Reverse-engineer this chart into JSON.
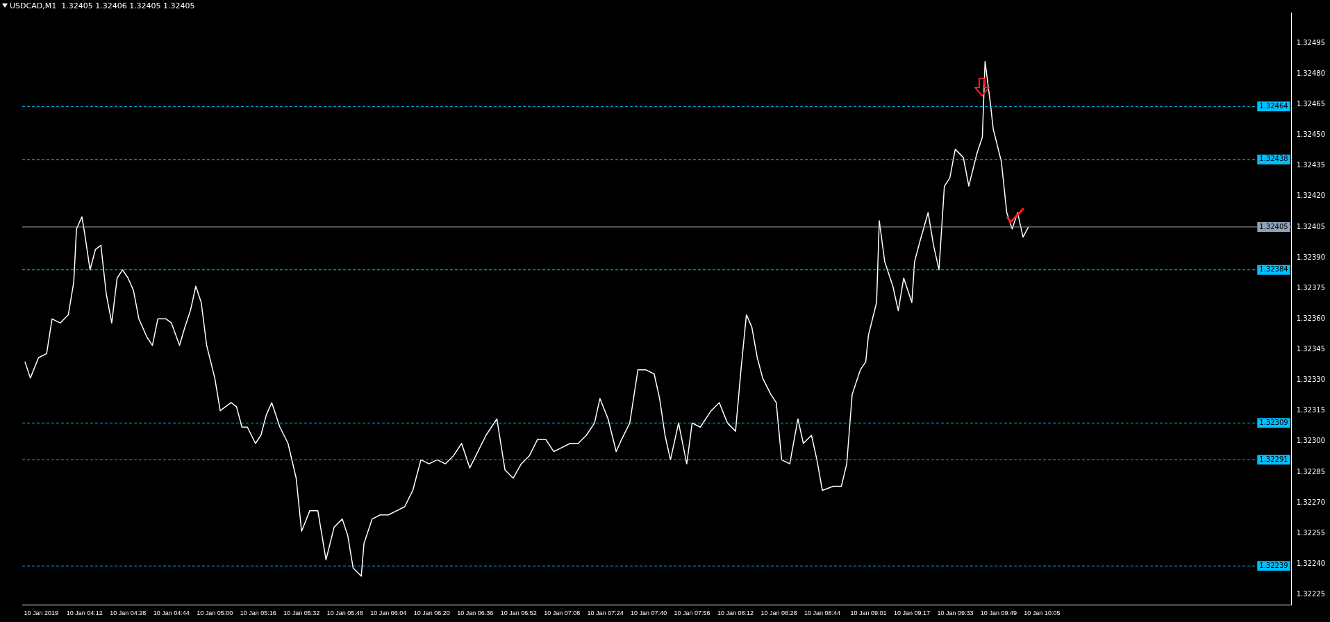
{
  "chart_data": {
    "type": "line",
    "title": "USDCAD,M1  1.32405 1.32406 1.32405 1.32405",
    "marker": "none",
    "line_style": "solid",
    "xlim": [
      "2019-01-10T03:49",
      "2019-01-10T11:37"
    ],
    "ylim": [
      1.3222,
      1.3251
    ],
    "xticks": [
      {
        "value": "2019-01-10T03:56",
        "label": "10 Jan 2019"
      },
      {
        "value": "2019-01-10T04:12",
        "label": "10 Jan 04:12"
      },
      {
        "value": "2019-01-10T04:28",
        "label": "10 Jan 04:28"
      },
      {
        "value": "2019-01-10T04:44",
        "label": "10 Jan 04:44"
      },
      {
        "value": "2019-01-10T05:00",
        "label": "10 Jan 05:00"
      },
      {
        "value": "2019-01-10T05:16",
        "label": "10 Jan 05:16"
      },
      {
        "value": "2019-01-10T05:32",
        "label": "10 Jan 05:32"
      },
      {
        "value": "2019-01-10T05:48",
        "label": "10 Jan 05:48"
      },
      {
        "value": "2019-01-10T06:04",
        "label": "10 Jan 06:04"
      },
      {
        "value": "2019-01-10T06:20",
        "label": "10 Jan 06:20"
      },
      {
        "value": "2019-01-10T06:36",
        "label": "10 Jan 06:36"
      },
      {
        "value": "2019-01-10T06:52",
        "label": "10 Jan 06:52"
      },
      {
        "value": "2019-01-10T07:08",
        "label": "10 Jan 07:08"
      },
      {
        "value": "2019-01-10T07:24",
        "label": "10 Jan 07:24"
      },
      {
        "value": "2019-01-10T07:40",
        "label": "10 Jan 07:40"
      },
      {
        "value": "2019-01-10T07:56",
        "label": "10 Jan 07:56"
      },
      {
        "value": "2019-01-10T08:12",
        "label": "10 Jan 08:12"
      },
      {
        "value": "2019-01-10T08:28",
        "label": "10 Jan 08:28"
      },
      {
        "value": "2019-01-10T08:44",
        "label": "10 Jan 08:44"
      },
      {
        "value": "2019-01-10T09:01",
        "label": "10 Jan 09:01"
      },
      {
        "value": "2019-01-10T09:17",
        "label": "10 Jan 09:17"
      },
      {
        "value": "2019-01-10T09:33",
        "label": "10 Jan 09:33"
      },
      {
        "value": "2019-01-10T09:49",
        "label": "10 Jan 09:49"
      },
      {
        "value": "2019-01-10T10:05",
        "label": "10 Jan 10:05"
      }
    ],
    "yticks": [
      {
        "value": 1.32225,
        "label": "1.32225"
      },
      {
        "value": 1.3224,
        "label": "1.32240"
      },
      {
        "value": 1.32255,
        "label": "1.32255"
      },
      {
        "value": 1.3227,
        "label": "1.32270"
      },
      {
        "value": 1.32285,
        "label": "1.32285"
      },
      {
        "value": 1.323,
        "label": "1.32300"
      },
      {
        "value": 1.32315,
        "label": "1.32315"
      },
      {
        "value": 1.3233,
        "label": "1.32330"
      },
      {
        "value": 1.32345,
        "label": "1.32345"
      },
      {
        "value": 1.3236,
        "label": "1.32360"
      },
      {
        "value": 1.32375,
        "label": "1.32375"
      },
      {
        "value": 1.3239,
        "label": "1.32390"
      },
      {
        "value": 1.32405,
        "label": "1.32405"
      },
      {
        "value": 1.3242,
        "label": "1.32420"
      },
      {
        "value": 1.32435,
        "label": "1.32435"
      },
      {
        "value": 1.3245,
        "label": "1.32450"
      },
      {
        "value": 1.32465,
        "label": "1.32465"
      },
      {
        "value": 1.3248,
        "label": "1.32480"
      },
      {
        "value": 1.32495,
        "label": "1.32495"
      }
    ],
    "x": [
      "2019-01-10T03:50",
      "2019-01-10T03:52",
      "2019-01-10T03:55",
      "2019-01-10T03:58",
      "2019-01-10T04:00",
      "2019-01-10T04:03",
      "2019-01-10T04:06",
      "2019-01-10T04:08",
      "2019-01-10T04:09",
      "2019-01-10T04:11",
      "2019-01-10T04:12",
      "2019-01-10T04:14",
      "2019-01-10T04:16",
      "2019-01-10T04:18",
      "2019-01-10T04:20",
      "2019-01-10T04:22",
      "2019-01-10T04:24",
      "2019-01-10T04:26",
      "2019-01-10T04:28",
      "2019-01-10T04:30",
      "2019-01-10T04:32",
      "2019-01-10T04:35",
      "2019-01-10T04:37",
      "2019-01-10T04:39",
      "2019-01-10T04:42",
      "2019-01-10T04:44",
      "2019-01-10T04:47",
      "2019-01-10T04:49",
      "2019-01-10T04:51",
      "2019-01-10T04:53",
      "2019-01-10T04:55",
      "2019-01-10T04:57",
      "2019-01-10T05:00",
      "2019-01-10T05:02",
      "2019-01-10T05:06",
      "2019-01-10T05:08",
      "2019-01-10T05:10",
      "2019-01-10T05:12",
      "2019-01-10T05:15",
      "2019-01-10T05:17",
      "2019-01-10T05:19",
      "2019-01-10T05:21",
      "2019-01-10T05:24",
      "2019-01-10T05:27",
      "2019-01-10T05:30",
      "2019-01-10T05:32",
      "2019-01-10T05:35",
      "2019-01-10T05:38",
      "2019-01-10T05:41",
      "2019-01-10T05:44",
      "2019-01-10T05:47",
      "2019-01-10T05:49",
      "2019-01-10T05:51",
      "2019-01-10T05:54",
      "2019-01-10T05:55",
      "2019-01-10T05:58",
      "2019-01-10T06:01",
      "2019-01-10T06:04",
      "2019-01-10T06:07",
      "2019-01-10T06:10",
      "2019-01-10T06:13",
      "2019-01-10T06:16",
      "2019-01-10T06:19",
      "2019-01-10T06:22",
      "2019-01-10T06:25",
      "2019-01-10T06:28",
      "2019-01-10T06:31",
      "2019-01-10T06:34",
      "2019-01-10T06:37",
      "2019-01-10T06:40",
      "2019-01-10T06:44",
      "2019-01-10T06:47",
      "2019-01-10T06:50",
      "2019-01-10T06:53",
      "2019-01-10T06:56",
      "2019-01-10T06:59",
      "2019-01-10T07:02",
      "2019-01-10T07:05",
      "2019-01-10T07:08",
      "2019-01-10T07:11",
      "2019-01-10T07:14",
      "2019-01-10T07:17",
      "2019-01-10T07:20",
      "2019-01-10T07:22",
      "2019-01-10T07:25",
      "2019-01-10T07:28",
      "2019-01-10T07:30",
      "2019-01-10T07:33",
      "2019-01-10T07:36",
      "2019-01-10T07:39",
      "2019-01-10T07:42",
      "2019-01-10T07:44",
      "2019-01-10T07:46",
      "2019-01-10T07:48",
      "2019-01-10T07:51",
      "2019-01-10T07:54",
      "2019-01-10T07:56",
      "2019-01-10T07:59",
      "2019-01-10T08:03",
      "2019-01-10T08:06",
      "2019-01-10T08:09",
      "2019-01-10T08:12",
      "2019-01-10T08:14",
      "2019-01-10T08:16",
      "2019-01-10T08:18",
      "2019-01-10T08:20",
      "2019-01-10T08:22",
      "2019-01-10T08:25",
      "2019-01-10T08:27",
      "2019-01-10T08:29",
      "2019-01-10T08:32",
      "2019-01-10T08:35",
      "2019-01-10T08:37",
      "2019-01-10T08:40",
      "2019-01-10T08:42",
      "2019-01-10T08:44",
      "2019-01-10T08:48",
      "2019-01-10T08:51",
      "2019-01-10T08:53",
      "2019-01-10T08:55",
      "2019-01-10T08:58",
      "2019-01-10T09:00",
      "2019-01-10T09:01",
      "2019-01-10T09:04",
      "2019-01-10T09:05",
      "2019-01-10T09:07",
      "2019-01-10T09:10",
      "2019-01-10T09:12",
      "2019-01-10T09:14",
      "2019-01-10T09:17",
      "2019-01-10T09:18",
      "2019-01-10T09:20",
      "2019-01-10T09:23",
      "2019-01-10T09:25",
      "2019-01-10T09:27",
      "2019-01-10T09:29",
      "2019-01-10T09:31",
      "2019-01-10T09:33",
      "2019-01-10T09:36",
      "2019-01-10T09:38",
      "2019-01-10T09:41",
      "2019-01-10T09:43",
      "2019-01-10T09:44",
      "2019-01-10T09:46",
      "2019-01-10T09:47",
      "2019-01-10T09:50",
      "2019-01-10T09:52",
      "2019-01-10T09:54",
      "2019-01-10T09:56",
      "2019-01-10T09:58",
      "2019-01-10T10:00"
    ],
    "series": [
      {
        "color": "#ffffff",
        "values": [
          1.32339,
          1.32331,
          1.32341,
          1.32343,
          1.3236,
          1.32358,
          1.32362,
          1.32378,
          1.32404,
          1.3241,
          1.32402,
          1.32384,
          1.32394,
          1.32396,
          1.32372,
          1.32358,
          1.3238,
          1.32384,
          1.3238,
          1.32374,
          1.3236,
          1.32351,
          1.32347,
          1.3236,
          1.3236,
          1.32358,
          1.32347,
          1.32356,
          1.32364,
          1.32376,
          1.32368,
          1.32347,
          1.32331,
          1.32315,
          1.32319,
          1.32317,
          1.32307,
          1.32307,
          1.32299,
          1.32303,
          1.32313,
          1.32319,
          1.32307,
          1.32299,
          1.32282,
          1.32256,
          1.32266,
          1.32266,
          1.32242,
          1.32258,
          1.32262,
          1.32254,
          1.32238,
          1.32234,
          1.3225,
          1.32262,
          1.32264,
          1.32264,
          1.32266,
          1.32268,
          1.32276,
          1.32291,
          1.32289,
          1.32291,
          1.32289,
          1.32293,
          1.32299,
          1.32287,
          1.32295,
          1.32303,
          1.32311,
          1.32286,
          1.32282,
          1.32289,
          1.32293,
          1.32301,
          1.32301,
          1.32295,
          1.32297,
          1.32299,
          1.32299,
          1.32303,
          1.32309,
          1.32321,
          1.32311,
          1.32295,
          1.32301,
          1.32309,
          1.32335,
          1.32335,
          1.32333,
          1.32321,
          1.32303,
          1.32291,
          1.32309,
          1.32289,
          1.32309,
          1.32307,
          1.32315,
          1.32319,
          1.32309,
          1.32305,
          1.32335,
          1.32362,
          1.32356,
          1.32341,
          1.32331,
          1.32323,
          1.32319,
          1.32291,
          1.32289,
          1.32311,
          1.32299,
          1.32303,
          1.32291,
          1.32276,
          1.32278,
          1.32278,
          1.32289,
          1.32323,
          1.32335,
          1.32339,
          1.32352,
          1.32368,
          1.32408,
          1.32388,
          1.32376,
          1.32364,
          1.3238,
          1.32368,
          1.32388,
          1.32398,
          1.32412,
          1.32396,
          1.32384,
          1.32425,
          1.32429,
          1.32443,
          1.32439,
          1.32425,
          1.32441,
          1.32449,
          1.32486,
          1.32465,
          1.32453,
          1.32437,
          1.32412,
          1.32404,
          1.32412,
          1.324,
          1.32405
        ]
      }
    ],
    "ref_lines": [
      {
        "axis": "y",
        "value": 1.32464,
        "label": "1.32464",
        "color": "#00bfff",
        "line_style": "dashed"
      },
      {
        "axis": "y",
        "value": 1.32438,
        "label": "1.32438",
        "color": "#00bfff",
        "line_style": "dashed"
      },
      {
        "axis": "y",
        "value": 1.32405,
        "label": "1.32405",
        "color": "#8fa3b8",
        "line_style": "solid"
      },
      {
        "axis": "y",
        "value": 1.32384,
        "label": "1.32384",
        "color": "#00bfff",
        "line_style": "dashed"
      },
      {
        "axis": "y",
        "value": 1.32309,
        "label": "1.32309",
        "color": "#00bfff",
        "line_style": "dashed"
      },
      {
        "axis": "y",
        "value": 1.32291,
        "label": "1.32291",
        "color": "#00bfff",
        "line_style": "dashed"
      },
      {
        "axis": "y",
        "value": 1.32239,
        "label": "1.32239",
        "color": "#00bfff",
        "line_style": "dashed"
      }
    ]
  }
}
